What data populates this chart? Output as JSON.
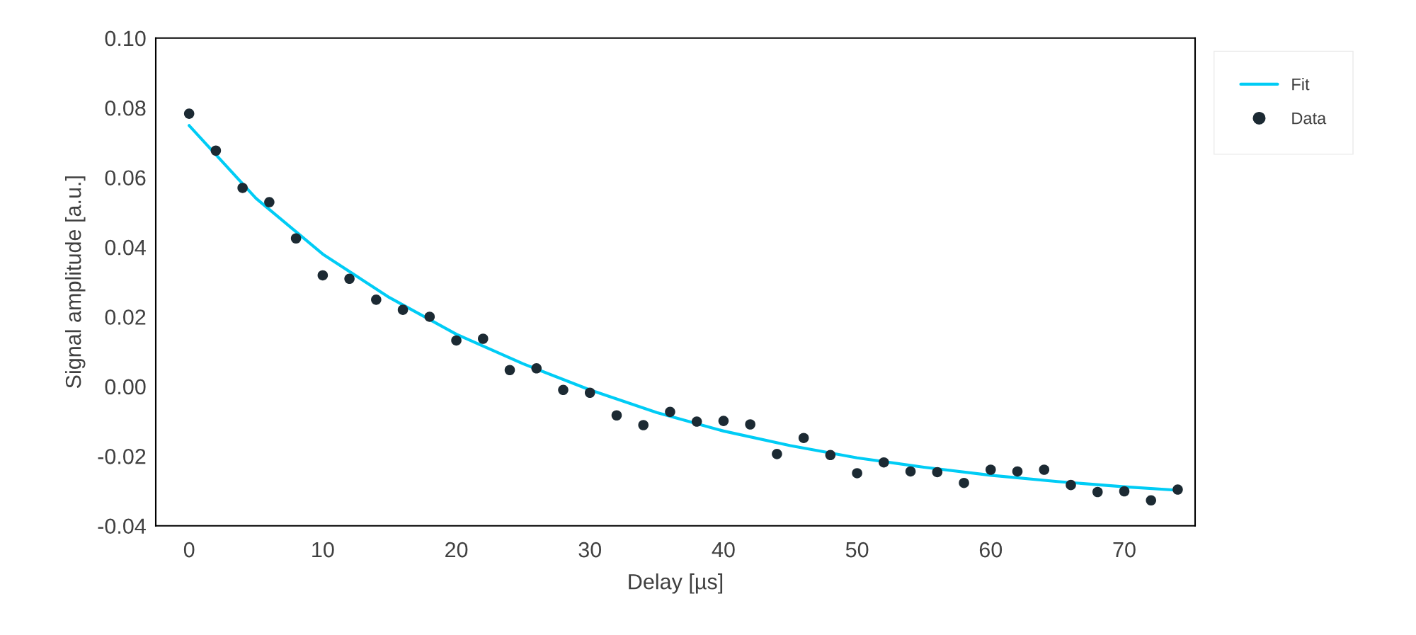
{
  "chart_data": {
    "type": "scatter",
    "xlabel": "Delay [µs]",
    "ylabel": "Signal amplitude [a.u.]",
    "xlim": [
      -2.5,
      75.3
    ],
    "xticks": [
      0,
      10,
      20,
      30,
      40,
      50,
      60,
      70
    ],
    "ylim": [
      -0.04,
      0.1
    ],
    "yticks": [
      {
        "value": -0.04,
        "label": "-0.04"
      },
      {
        "value": -0.02,
        "label": "-0.02"
      },
      {
        "value": 0,
        "label": "0.00"
      },
      {
        "value": 0.02,
        "label": "0.02"
      },
      {
        "value": 0.04,
        "label": "0.04"
      },
      {
        "value": 0.06,
        "label": "0.06"
      },
      {
        "value": 0.08,
        "label": "0.08"
      },
      {
        "value": 0.1,
        "label": "0.10"
      }
    ],
    "grid": false,
    "legend": "top right",
    "series": [
      {
        "name": "Fit",
        "type": "line",
        "color": "#00ccf5",
        "line_style": "solid",
        "marker": "none",
        "x": [
          0,
          5,
          10,
          15,
          20,
          25,
          30,
          35,
          40,
          45,
          50,
          55,
          60,
          65,
          70,
          74
        ],
        "values": [
          0.0749,
          0.054,
          0.038,
          0.0255,
          0.015,
          0.0065,
          -0.001,
          -0.0075,
          -0.0128,
          -0.017,
          -0.0205,
          -0.0232,
          -0.0255,
          -0.0273,
          -0.0288,
          -0.0298
        ]
      },
      {
        "name": "Data",
        "marker": "circle",
        "color": "#1c2a33",
        "x": [
          0,
          2,
          4,
          6,
          8,
          10,
          12,
          14,
          16,
          18,
          20,
          22,
          24,
          26,
          28,
          30,
          32,
          34,
          36,
          38,
          40,
          42,
          44,
          46,
          48,
          50,
          52,
          54,
          56,
          58,
          60,
          62,
          64,
          66,
          68,
          70,
          72,
          74
        ],
        "values": [
          0.0783,
          0.0677,
          0.057,
          0.0529,
          0.0425,
          0.0319,
          0.0309,
          0.0249,
          0.022,
          0.02,
          0.0132,
          0.0137,
          0.0047,
          0.0052,
          -0.001,
          -0.0018,
          -0.0083,
          -0.0111,
          -0.0073,
          -0.0101,
          -0.0099,
          -0.0109,
          -0.0194,
          -0.0148,
          -0.0197,
          -0.0249,
          -0.0218,
          -0.0244,
          -0.0246,
          -0.0277,
          -0.0239,
          -0.0244,
          -0.0239,
          -0.0283,
          -0.0303,
          -0.0301,
          -0.0327,
          -0.0296
        ]
      }
    ]
  }
}
